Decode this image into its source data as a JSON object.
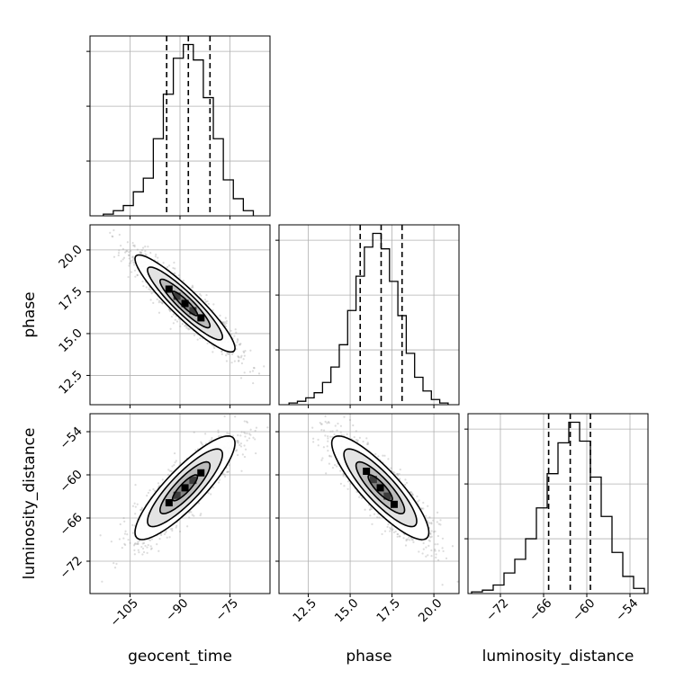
{
  "chart_data": {
    "type": "corner",
    "parameters": [
      "geocent_time",
      "phase",
      "luminosity_distance"
    ],
    "ranges": {
      "geocent_time": [
        -117,
        -63
      ],
      "phase": [
        10.75,
        21.5
      ],
      "luminosity_distance": [
        -76.5,
        -51.5
      ]
    },
    "tick_labels": {
      "geocent_time": [
        "−105",
        "−90",
        "−75"
      ],
      "phase": [
        "12.5",
        "15.0",
        "17.5",
        "20.0"
      ],
      "luminosity_distance": [
        "−72",
        "−66",
        "−60",
        "−54"
      ]
    },
    "ticks": {
      "geocent_time": [
        -105,
        -90,
        -75
      ],
      "phase": [
        12.5,
        15.0,
        17.5,
        20.0
      ],
      "luminosity_distance": [
        -72,
        -66,
        -60,
        -54
      ]
    },
    "quantiles": {
      "geocent_time": [
        -94,
        -87.5,
        -81
      ],
      "phase": [
        15.6,
        16.85,
        18.1
      ],
      "luminosity_distance": [
        -65.3,
        -62.3,
        -59.5
      ]
    },
    "histograms": {
      "geocent_time": {
        "edges": [
          -113,
          -110,
          -107,
          -104,
          -101,
          -98,
          -95,
          -92,
          -89,
          -86,
          -83,
          -80,
          -77,
          -74,
          -71,
          -68
        ],
        "counts": [
          0.01,
          0.03,
          0.06,
          0.14,
          0.22,
          0.45,
          0.71,
          0.92,
          1.0,
          0.91,
          0.69,
          0.45,
          0.21,
          0.1,
          0.03
        ]
      },
      "phase": {
        "edges": [
          11.35,
          11.85,
          12.35,
          12.85,
          13.35,
          13.85,
          14.35,
          14.85,
          15.35,
          15.85,
          16.35,
          16.85,
          17.35,
          17.85,
          18.35,
          18.85,
          19.35,
          19.85,
          20.35,
          20.85
        ],
        "counts": [
          0.01,
          0.02,
          0.04,
          0.07,
          0.13,
          0.22,
          0.35,
          0.55,
          0.75,
          0.92,
          1.0,
          0.91,
          0.72,
          0.52,
          0.3,
          0.16,
          0.08,
          0.03,
          0.01
        ]
      },
      "luminosity_distance": {
        "edges": [
          -76,
          -74.5,
          -73,
          -71.5,
          -70,
          -68.5,
          -67,
          -65.5,
          -64,
          -62.5,
          -61,
          -59.5,
          -58,
          -56.5,
          -55,
          -53.5,
          -52
        ],
        "counts": [
          0.01,
          0.02,
          0.05,
          0.12,
          0.2,
          0.32,
          0.5,
          0.7,
          0.88,
          1.0,
          0.89,
          0.68,
          0.45,
          0.24,
          0.1,
          0.03
        ]
      }
    },
    "joint": [
      {
        "x": "geocent_time",
        "y": "phase",
        "mean": [
          -88.5,
          16.8
        ],
        "sd": [
          7.5,
          1.45
        ],
        "rho": -0.92
      },
      {
        "x": "geocent_time",
        "y": "luminosity_distance",
        "mean": [
          -88.5,
          -61.8
        ],
        "sd": [
          7.5,
          3.6
        ],
        "rho": 0.86
      },
      {
        "x": "phase",
        "y": "luminosity_distance",
        "mean": [
          16.8,
          -61.8
        ],
        "sd": [
          1.45,
          3.6
        ],
        "rho": -0.86
      }
    ],
    "contour_levels": [
      0.5,
      1.0,
      1.5,
      2.0
    ],
    "grid": true,
    "colors": {
      "ink": "#000000",
      "grid": "#b0b0b0",
      "scatter": "#9a9a9a",
      "background": "#ffffff"
    }
  }
}
